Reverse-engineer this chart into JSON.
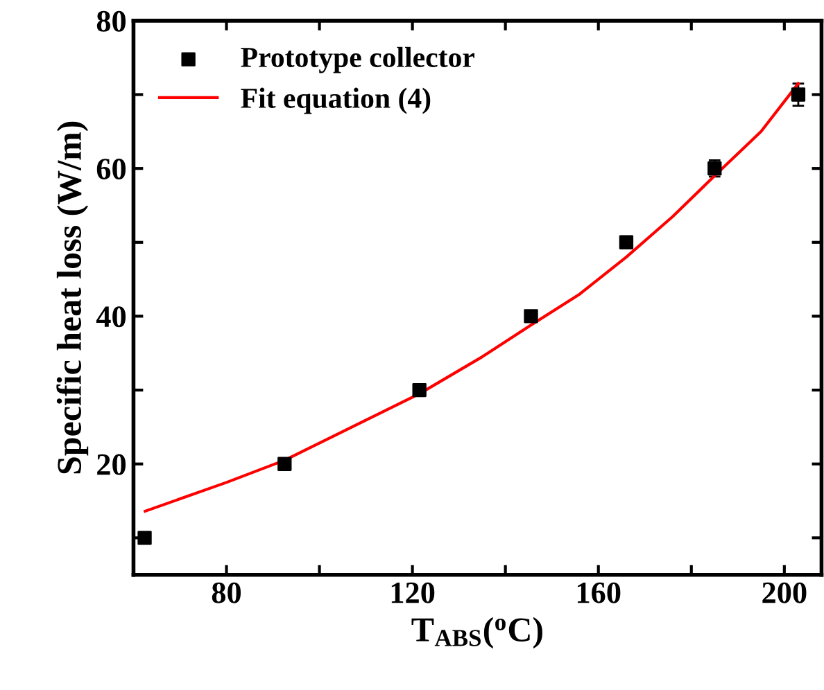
{
  "chart_data": {
    "type": "scatter",
    "xlabel": "T$_{ABS}$($^{o}$C)",
    "ylabel": "Specific heat loss (W/m)",
    "xlim": [
      60,
      208
    ],
    "ylim": [
      5,
      80
    ],
    "xticks": [
      80,
      {
        "value": 100,
        "label": null
      },
      120,
      {
        "value": 140,
        "label": null
      },
      160,
      {
        "value": 180,
        "label": null
      },
      200
    ],
    "yticks": [
      {
        "value": 10,
        "label": null
      },
      20,
      {
        "value": 30,
        "label": null
      },
      40,
      {
        "value": 50,
        "label": null
      },
      60,
      {
        "value": 70,
        "label": null
      },
      80
    ],
    "legend": "top left",
    "grid": false,
    "series": [
      {
        "name": "Prototype collector",
        "type": "scatter",
        "marker": "square",
        "color": "#000000",
        "x": [
          62.4,
          92.5,
          121.5,
          145.5,
          166,
          185,
          203
        ],
        "values": [
          10,
          20,
          30,
          40,
          50,
          60,
          70
        ],
        "errors": [
          null,
          null,
          0.3,
          0.5,
          0.8,
          1.1,
          1.5
        ]
      },
      {
        "name": "Fit equation (4)",
        "type": "line",
        "marker": "none",
        "line_style": "solid",
        "color": "#ff0000",
        "x": [
          62.5,
          80,
          92.5,
          107,
          121.5,
          135,
          145.5,
          156,
          166,
          176,
          185,
          195,
          203
        ],
        "values": [
          13.6,
          17.5,
          20.5,
          25,
          29.5,
          34.5,
          38.8,
          43,
          48,
          53.5,
          59,
          65,
          71.5
        ]
      }
    ]
  }
}
